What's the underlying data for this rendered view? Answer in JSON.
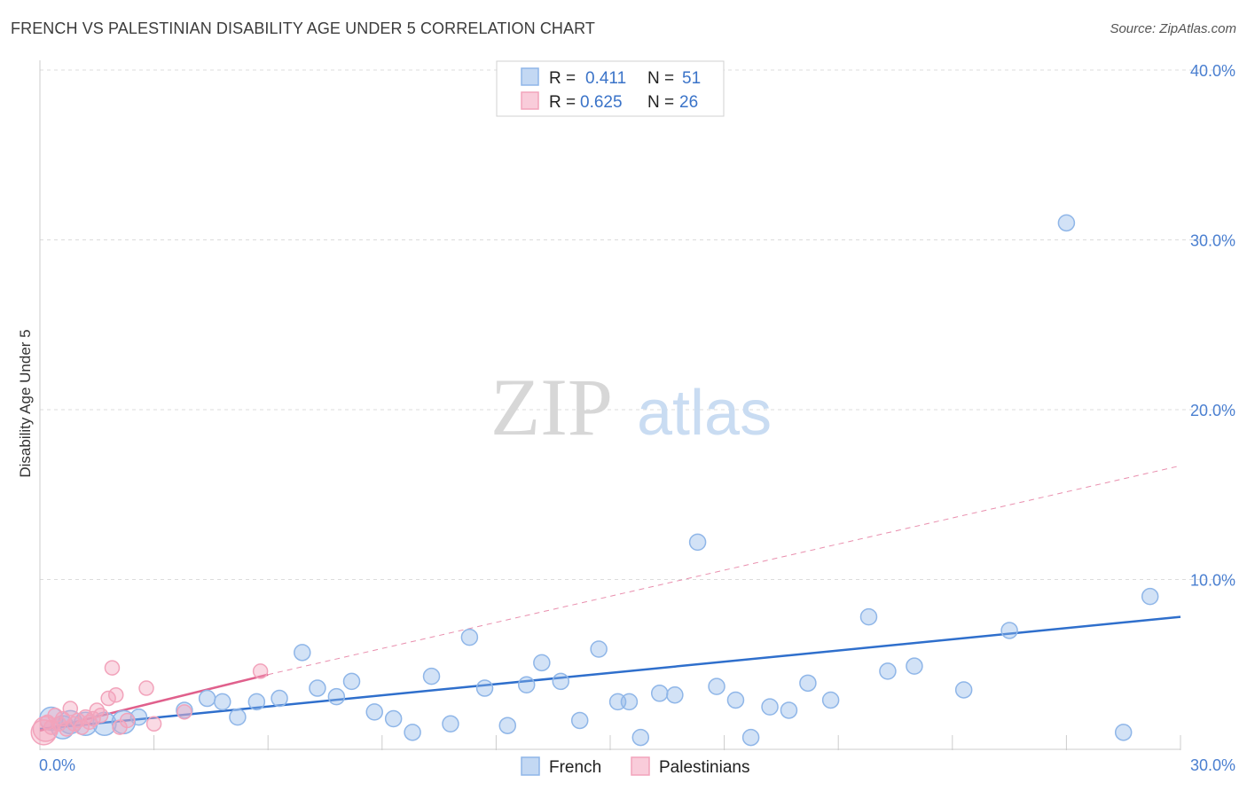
{
  "title": "FRENCH VS PALESTINIAN DISABILITY AGE UNDER 5 CORRELATION CHART",
  "source": "Source: ZipAtlas.com",
  "watermark": {
    "zip": "ZIP",
    "atlas": "atlas"
  },
  "colors": {
    "french": "#8fb6e8",
    "french_line": "#2f6fcc",
    "palestinian": "#f2a3bb",
    "palestinian_line": "#e0608c",
    "tick": "#4a7fd0",
    "grid": "#dcdcdc"
  },
  "legend": {
    "rows": [
      {
        "r_label": "R =",
        "r_value": "0.411",
        "n_label": "N =",
        "n_value": "51"
      },
      {
        "r_label": "R =",
        "r_value": "0.625",
        "n_label": "N =",
        "n_value": "26"
      }
    ]
  },
  "chart_data": {
    "type": "scatter",
    "ylabel": "Disability Age Under 5",
    "xlim": [
      0,
      30
    ],
    "ylim": [
      0,
      40
    ],
    "x_tick_labels": [
      "0.0%",
      "30.0%"
    ],
    "y_ticks": [
      10,
      20,
      30,
      40
    ],
    "y_tick_labels": [
      "10.0%",
      "20.0%",
      "30.0%",
      "40.0%"
    ],
    "series": [
      {
        "name": "French",
        "points": [
          [
            0.3,
            1.8
          ],
          [
            0.6,
            1.3
          ],
          [
            0.8,
            1.6
          ],
          [
            1.2,
            1.5
          ],
          [
            1.7,
            1.5
          ],
          [
            2.2,
            1.6
          ],
          [
            2.6,
            1.9
          ],
          [
            3.8,
            2.3
          ],
          [
            4.4,
            3.0
          ],
          [
            4.8,
            2.8
          ],
          [
            5.2,
            1.9
          ],
          [
            5.7,
            2.8
          ],
          [
            6.3,
            3.0
          ],
          [
            6.9,
            5.7
          ],
          [
            7.3,
            3.6
          ],
          [
            7.8,
            3.1
          ],
          [
            8.2,
            4.0
          ],
          [
            8.8,
            2.2
          ],
          [
            9.3,
            1.8
          ],
          [
            9.8,
            1.0
          ],
          [
            10.3,
            4.3
          ],
          [
            10.8,
            1.5
          ],
          [
            11.3,
            6.6
          ],
          [
            11.7,
            3.6
          ],
          [
            12.3,
            1.4
          ],
          [
            12.8,
            3.8
          ],
          [
            13.2,
            5.1
          ],
          [
            13.7,
            4.0
          ],
          [
            14.2,
            1.7
          ],
          [
            14.7,
            5.9
          ],
          [
            15.2,
            2.8
          ],
          [
            15.8,
            0.7
          ],
          [
            16.3,
            3.3
          ],
          [
            16.7,
            3.2
          ],
          [
            17.3,
            12.2
          ],
          [
            17.8,
            3.7
          ],
          [
            18.3,
            2.9
          ],
          [
            18.7,
            0.7
          ],
          [
            19.2,
            2.5
          ],
          [
            19.7,
            2.3
          ],
          [
            20.2,
            3.9
          ],
          [
            20.8,
            2.9
          ],
          [
            21.8,
            7.8
          ],
          [
            22.3,
            4.6
          ],
          [
            23.0,
            4.9
          ],
          [
            24.3,
            3.5
          ],
          [
            25.5,
            7.0
          ],
          [
            27.0,
            31.0
          ],
          [
            28.5,
            1.0
          ],
          [
            29.2,
            9.0
          ],
          [
            15.5,
            2.8
          ]
        ],
        "trend": [
          [
            0,
            1.2
          ],
          [
            30,
            7.8
          ]
        ]
      },
      {
        "name": "Palestinians",
        "points": [
          [
            0.1,
            1.0
          ],
          [
            0.2,
            1.6
          ],
          [
            0.3,
            1.3
          ],
          [
            0.4,
            2.0
          ],
          [
            0.5,
            1.5
          ],
          [
            0.6,
            1.8
          ],
          [
            0.7,
            1.2
          ],
          [
            0.8,
            2.4
          ],
          [
            0.9,
            1.5
          ],
          [
            1.0,
            1.7
          ],
          [
            1.1,
            1.3
          ],
          [
            1.2,
            1.9
          ],
          [
            1.3,
            1.6
          ],
          [
            1.4,
            1.8
          ],
          [
            1.5,
            2.3
          ],
          [
            1.6,
            2.0
          ],
          [
            1.8,
            3.0
          ],
          [
            1.9,
            4.8
          ],
          [
            2.0,
            3.2
          ],
          [
            2.1,
            1.3
          ],
          [
            2.3,
            1.7
          ],
          [
            2.8,
            3.6
          ],
          [
            3.0,
            1.5
          ],
          [
            3.8,
            2.2
          ],
          [
            5.8,
            4.6
          ],
          [
            0.15,
            1.2
          ]
        ],
        "trend_solid": [
          [
            0,
            1.1
          ],
          [
            6,
            4.4
          ]
        ],
        "trend_dashed": [
          [
            6,
            4.4
          ],
          [
            30,
            16.7
          ]
        ]
      }
    ]
  }
}
